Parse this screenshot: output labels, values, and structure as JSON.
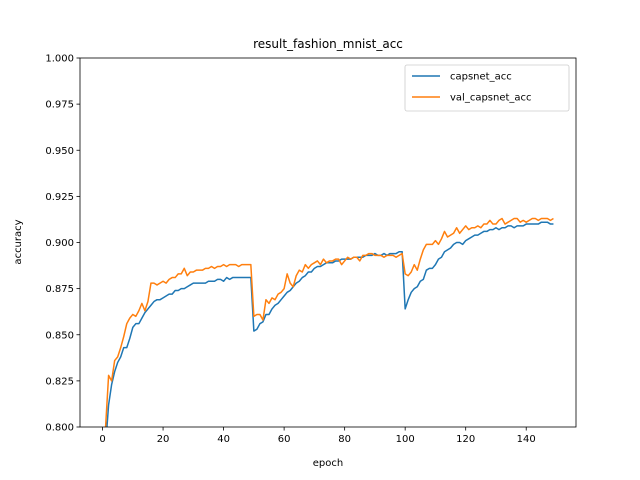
{
  "chart_data": {
    "type": "line",
    "title": "result_fashion_mnist_acc",
    "xlabel": "epoch",
    "ylabel": "accuracy",
    "xlim": [
      -7.45,
      156.45
    ],
    "ylim": [
      0.8,
      1.0
    ],
    "xticks": [
      0,
      20,
      40,
      60,
      80,
      100,
      120,
      140
    ],
    "xtick_labels": [
      "0",
      "20",
      "40",
      "60",
      "80",
      "100",
      "120",
      "140"
    ],
    "yticks": [
      0.8,
      0.825,
      0.85,
      0.875,
      0.9,
      0.925,
      0.95,
      0.975,
      1.0
    ],
    "ytick_labels": [
      "0.800",
      "0.825",
      "0.850",
      "0.875",
      "0.900",
      "0.925",
      "0.950",
      "0.975",
      "1.000"
    ],
    "grid": false,
    "legend_position": "top-right",
    "series": [
      {
        "name": "capsnet_acc",
        "color": "#1f77b4",
        "values": [
          0.76,
          0.79,
          0.812,
          0.823,
          0.83,
          0.835,
          0.838,
          0.843,
          0.843,
          0.848,
          0.854,
          0.856,
          0.856,
          0.859,
          0.862,
          0.864,
          0.866,
          0.868,
          0.869,
          0.869,
          0.87,
          0.871,
          0.872,
          0.872,
          0.874,
          0.874,
          0.875,
          0.875,
          0.876,
          0.877,
          0.878,
          0.878,
          0.878,
          0.878,
          0.878,
          0.879,
          0.879,
          0.879,
          0.88,
          0.88,
          0.879,
          0.881,
          0.88,
          0.881,
          0.881,
          0.881,
          0.881,
          0.881,
          0.881,
          0.881,
          0.852,
          0.853,
          0.856,
          0.857,
          0.861,
          0.861,
          0.864,
          0.866,
          0.867,
          0.869,
          0.871,
          0.873,
          0.874,
          0.876,
          0.878,
          0.879,
          0.881,
          0.882,
          0.884,
          0.884,
          0.886,
          0.887,
          0.887,
          0.888,
          0.889,
          0.889,
          0.889,
          0.89,
          0.89,
          0.891,
          0.891,
          0.891,
          0.891,
          0.892,
          0.892,
          0.892,
          0.892,
          0.893,
          0.893,
          0.893,
          0.894,
          0.893,
          0.893,
          0.894,
          0.893,
          0.894,
          0.894,
          0.894,
          0.895,
          0.895,
          0.864,
          0.869,
          0.873,
          0.875,
          0.876,
          0.879,
          0.88,
          0.885,
          0.886,
          0.886,
          0.888,
          0.891,
          0.892,
          0.895,
          0.896,
          0.897,
          0.899,
          0.9,
          0.9,
          0.899,
          0.901,
          0.902,
          0.903,
          0.904,
          0.904,
          0.905,
          0.906,
          0.906,
          0.907,
          0.907,
          0.908,
          0.907,
          0.908,
          0.908,
          0.909,
          0.909,
          0.908,
          0.909,
          0.909,
          0.909,
          0.91,
          0.91,
          0.91,
          0.91,
          0.91,
          0.911,
          0.911,
          0.911,
          0.91,
          0.91
        ]
      },
      {
        "name": "val_capsnet_acc",
        "color": "#ff7f0e",
        "values": [
          0.77,
          0.8,
          0.828,
          0.825,
          0.836,
          0.838,
          0.843,
          0.849,
          0.856,
          0.859,
          0.861,
          0.86,
          0.863,
          0.867,
          0.863,
          0.868,
          0.878,
          0.878,
          0.877,
          0.878,
          0.879,
          0.878,
          0.88,
          0.881,
          0.881,
          0.883,
          0.883,
          0.886,
          0.882,
          0.884,
          0.884,
          0.885,
          0.885,
          0.885,
          0.886,
          0.886,
          0.887,
          0.886,
          0.887,
          0.887,
          0.888,
          0.887,
          0.888,
          0.888,
          0.888,
          0.887,
          0.888,
          0.888,
          0.888,
          0.888,
          0.86,
          0.861,
          0.861,
          0.858,
          0.869,
          0.867,
          0.87,
          0.869,
          0.872,
          0.873,
          0.875,
          0.883,
          0.878,
          0.876,
          0.882,
          0.885,
          0.884,
          0.888,
          0.886,
          0.888,
          0.889,
          0.89,
          0.888,
          0.891,
          0.889,
          0.89,
          0.89,
          0.891,
          0.891,
          0.888,
          0.89,
          0.892,
          0.891,
          0.892,
          0.892,
          0.89,
          0.893,
          0.893,
          0.894,
          0.894,
          0.893,
          0.893,
          0.893,
          0.892,
          0.893,
          0.893,
          0.893,
          0.892,
          0.893,
          0.894,
          0.883,
          0.882,
          0.884,
          0.888,
          0.885,
          0.891,
          0.896,
          0.899,
          0.899,
          0.899,
          0.901,
          0.899,
          0.902,
          0.906,
          0.903,
          0.904,
          0.905,
          0.908,
          0.905,
          0.907,
          0.909,
          0.907,
          0.908,
          0.908,
          0.909,
          0.908,
          0.91,
          0.91,
          0.912,
          0.91,
          0.91,
          0.912,
          0.913,
          0.91,
          0.911,
          0.912,
          0.913,
          0.913,
          0.911,
          0.912,
          0.911,
          0.912,
          0.913,
          0.913,
          0.912,
          0.913,
          0.913,
          0.913,
          0.912,
          0.913
        ]
      }
    ]
  }
}
